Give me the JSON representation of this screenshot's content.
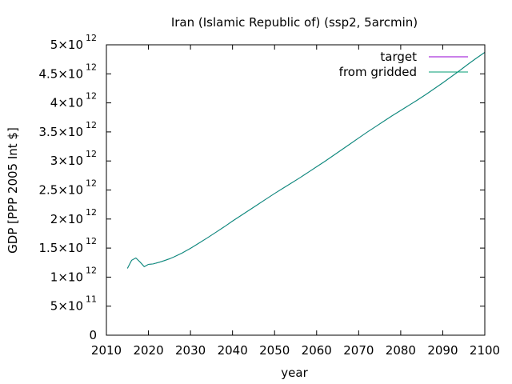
{
  "chart_data": {
    "type": "line",
    "title": "Iran (Islamic Republic of) (ssp2, 5arcmin)",
    "xlabel": "year",
    "ylabel": "GDP [PPP 2005 Int $]",
    "xlim": [
      2010,
      2100
    ],
    "ylim": [
      0,
      5000000000000
    ],
    "x_ticks": [
      {
        "value": 2010,
        "label": "2010"
      },
      {
        "value": 2020,
        "label": "2020"
      },
      {
        "value": 2030,
        "label": "2030"
      },
      {
        "value": 2040,
        "label": "2040"
      },
      {
        "value": 2050,
        "label": "2050"
      },
      {
        "value": 2060,
        "label": "2060"
      },
      {
        "value": 2070,
        "label": "2070"
      },
      {
        "value": 2080,
        "label": "2080"
      },
      {
        "value": 2090,
        "label": "2090"
      },
      {
        "value": 2100,
        "label": "2100"
      }
    ],
    "y_ticks": [
      {
        "value": 0,
        "mantissa": "0",
        "exponent": ""
      },
      {
        "value": 500000000000,
        "mantissa": "5×10",
        "exponent": "11"
      },
      {
        "value": 1000000000000,
        "mantissa": "1×10",
        "exponent": "12"
      },
      {
        "value": 1500000000000,
        "mantissa": "1.5×10",
        "exponent": "12"
      },
      {
        "value": 2000000000000,
        "mantissa": "2×10",
        "exponent": "12"
      },
      {
        "value": 2500000000000,
        "mantissa": "2.5×10",
        "exponent": "12"
      },
      {
        "value": 3000000000000,
        "mantissa": "3×10",
        "exponent": "12"
      },
      {
        "value": 3500000000000,
        "mantissa": "3.5×10",
        "exponent": "12"
      },
      {
        "value": 4000000000000,
        "mantissa": "4×10",
        "exponent": "12"
      },
      {
        "value": 4500000000000,
        "mantissa": "4.5×10",
        "exponent": "12"
      },
      {
        "value": 5000000000000,
        "mantissa": "5×10",
        "exponent": "12"
      }
    ],
    "legend_position": "top-right",
    "x": [
      2015,
      2016,
      2017,
      2018,
      2019,
      2020,
      2021,
      2022,
      2023,
      2024,
      2025,
      2026,
      2027,
      2028,
      2029,
      2030,
      2032,
      2034,
      2036,
      2038,
      2040,
      2042,
      2044,
      2046,
      2048,
      2050,
      2052,
      2054,
      2056,
      2058,
      2060,
      2062,
      2064,
      2066,
      2068,
      2070,
      2072,
      2074,
      2076,
      2078,
      2080,
      2082,
      2084,
      2086,
      2088,
      2090,
      2092,
      2094,
      2096,
      2098,
      2100
    ],
    "series": [
      {
        "name": "target",
        "color": "#9400d3",
        "values": [
          1150000000000,
          1290000000000,
          1330000000000,
          1260000000000,
          1180000000000,
          1220000000000,
          1225000000000,
          1245000000000,
          1265000000000,
          1290000000000,
          1315000000000,
          1345000000000,
          1380000000000,
          1415000000000,
          1455000000000,
          1495000000000,
          1585000000000,
          1675000000000,
          1770000000000,
          1865000000000,
          1965000000000,
          2060000000000,
          2155000000000,
          2250000000000,
          2345000000000,
          2440000000000,
          2530000000000,
          2620000000000,
          2710000000000,
          2805000000000,
          2900000000000,
          2995000000000,
          3095000000000,
          3195000000000,
          3295000000000,
          3395000000000,
          3495000000000,
          3590000000000,
          3685000000000,
          3780000000000,
          3870000000000,
          3960000000000,
          4050000000000,
          4145000000000,
          4245000000000,
          4345000000000,
          4450000000000,
          4555000000000,
          4665000000000,
          4770000000000,
          4870000000000
        ]
      },
      {
        "name": "from gridded",
        "color": "#009e73",
        "values": [
          1150000000000,
          1290000000000,
          1330000000000,
          1260000000000,
          1180000000000,
          1220000000000,
          1225000000000,
          1245000000000,
          1265000000000,
          1290000000000,
          1315000000000,
          1345000000000,
          1380000000000,
          1415000000000,
          1455000000000,
          1495000000000,
          1585000000000,
          1675000000000,
          1770000000000,
          1865000000000,
          1965000000000,
          2060000000000,
          2155000000000,
          2250000000000,
          2345000000000,
          2440000000000,
          2530000000000,
          2620000000000,
          2710000000000,
          2805000000000,
          2900000000000,
          2995000000000,
          3095000000000,
          3195000000000,
          3295000000000,
          3395000000000,
          3495000000000,
          3590000000000,
          3685000000000,
          3780000000000,
          3870000000000,
          3960000000000,
          4050000000000,
          4145000000000,
          4245000000000,
          4345000000000,
          4450000000000,
          4555000000000,
          4665000000000,
          4770000000000,
          4870000000000
        ]
      }
    ]
  }
}
